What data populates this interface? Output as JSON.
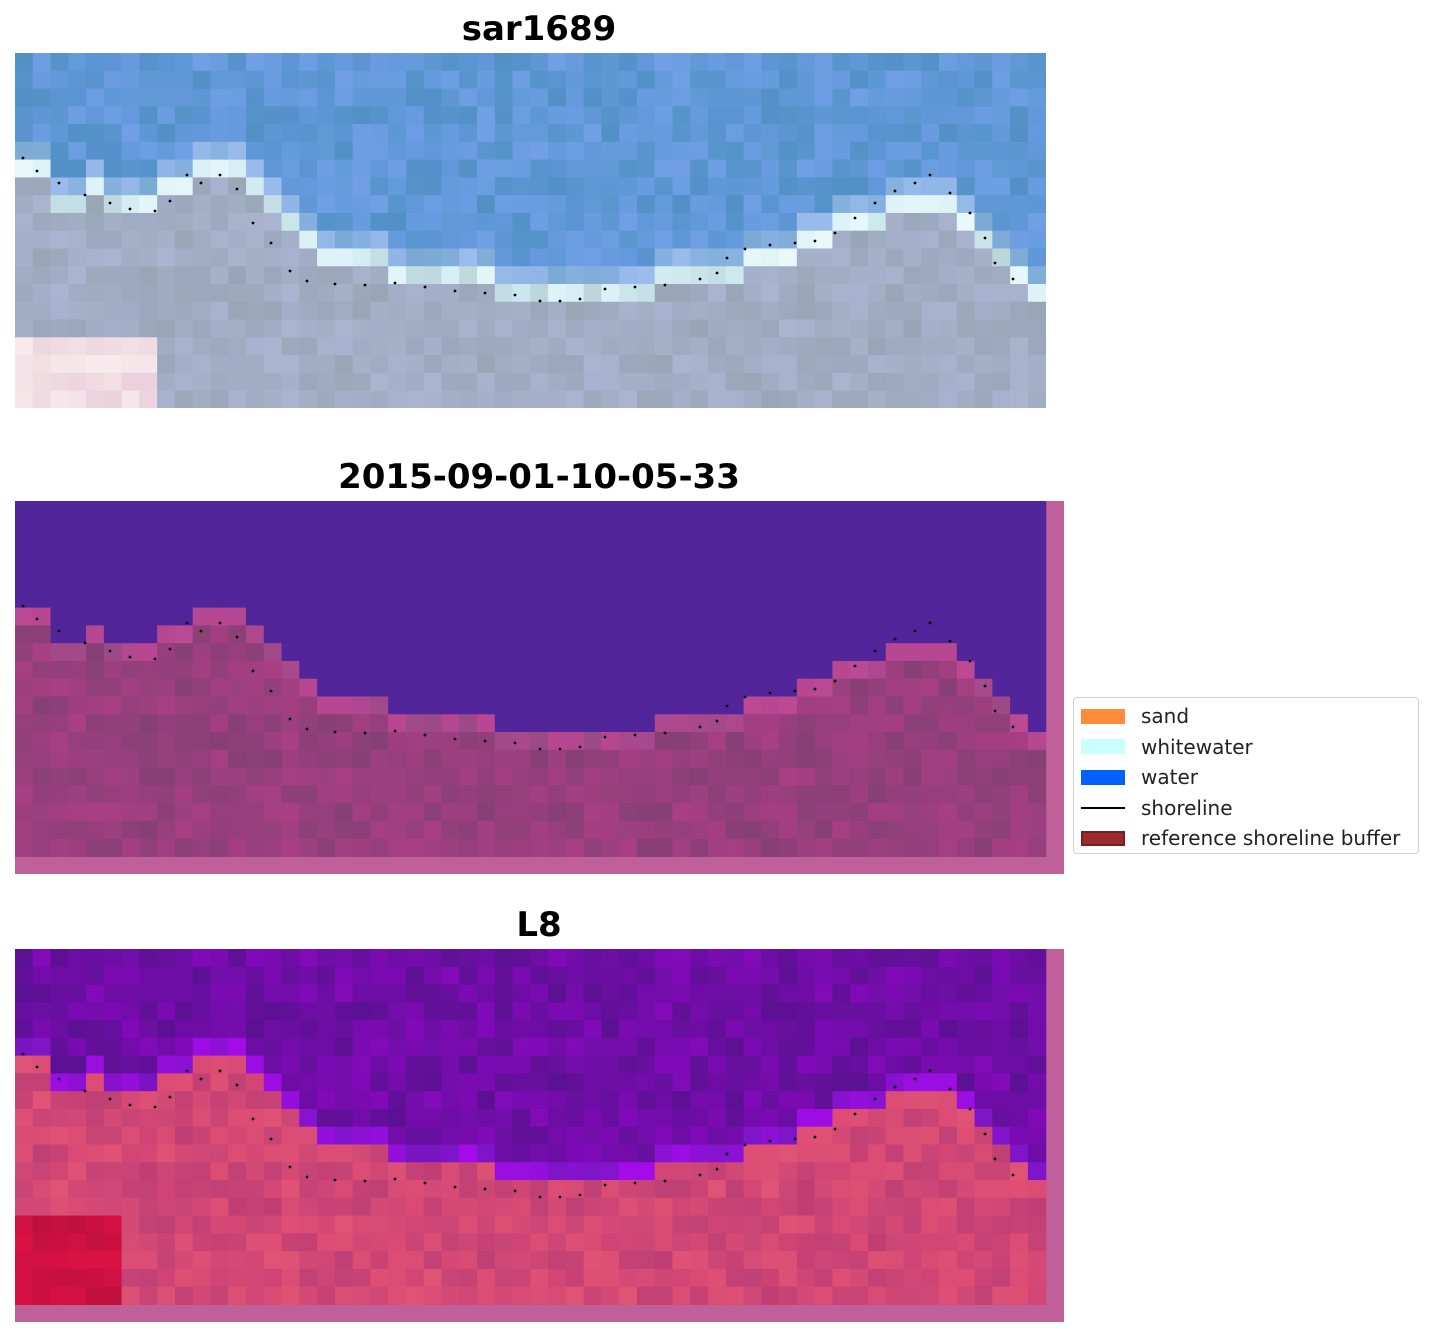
{
  "panels": [
    {
      "title": "sar1689",
      "style": "rgb"
    },
    {
      "title": "2015-09-01-10-05-33",
      "style": "classified"
    },
    {
      "title": "L8",
      "style": "index"
    }
  ],
  "legend": {
    "items": [
      {
        "label": "sand",
        "color": "#ff8c3a",
        "kind": "patch"
      },
      {
        "label": "whitewater",
        "color": "#c9ffff",
        "kind": "patch"
      },
      {
        "label": "water",
        "color": "#0061ff",
        "kind": "patch"
      },
      {
        "label": "shoreline",
        "color": "#000000",
        "kind": "line"
      },
      {
        "label": "reference shoreline buffer",
        "color": "#9b2a2a",
        "kind": "patch"
      }
    ]
  },
  "colors": {
    "water_classified": "#53259a",
    "land_classified": "#8f417f",
    "buffer_overlay": "#c0609a",
    "water_index": "#6a10a0",
    "land_index": "#cc4f88"
  }
}
